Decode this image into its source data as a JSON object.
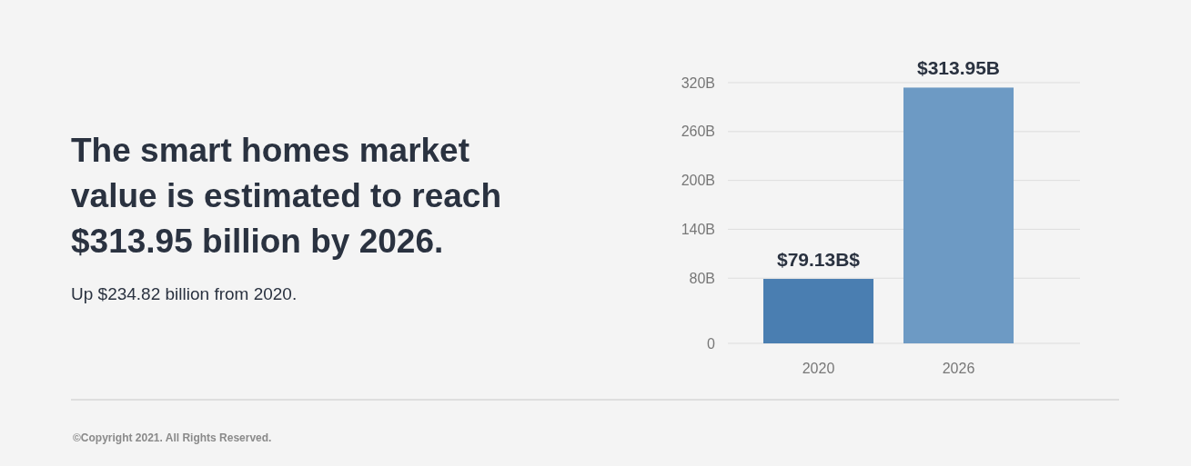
{
  "chart_data": {
    "type": "bar",
    "title": "The smart homes market value is estimated to reach $313.95 billion by 2026.",
    "subtitle": "Up $234.82 billion from 2020.",
    "categories": [
      "2020",
      "2026"
    ],
    "values": [
      79.13,
      313.95
    ],
    "colors": [
      "#4a7eb1",
      "#6d9ac4"
    ],
    "ylim": [
      0,
      320
    ],
    "yticks": [
      0,
      {
        "value": 80,
        "label": "80B"
      },
      {
        "value": 140,
        "label": "140B"
      },
      {
        "value": 200,
        "label": "200B"
      },
      {
        "value": 260,
        "label": "260B"
      },
      {
        "value": 320,
        "label": "320B"
      }
    ],
    "grid": "y",
    "value_labels": [
      "$79.13B$",
      "$313.95B"
    ],
    "annotations": [
      "©Copyright 2021. All Rights Reserved."
    ]
  }
}
